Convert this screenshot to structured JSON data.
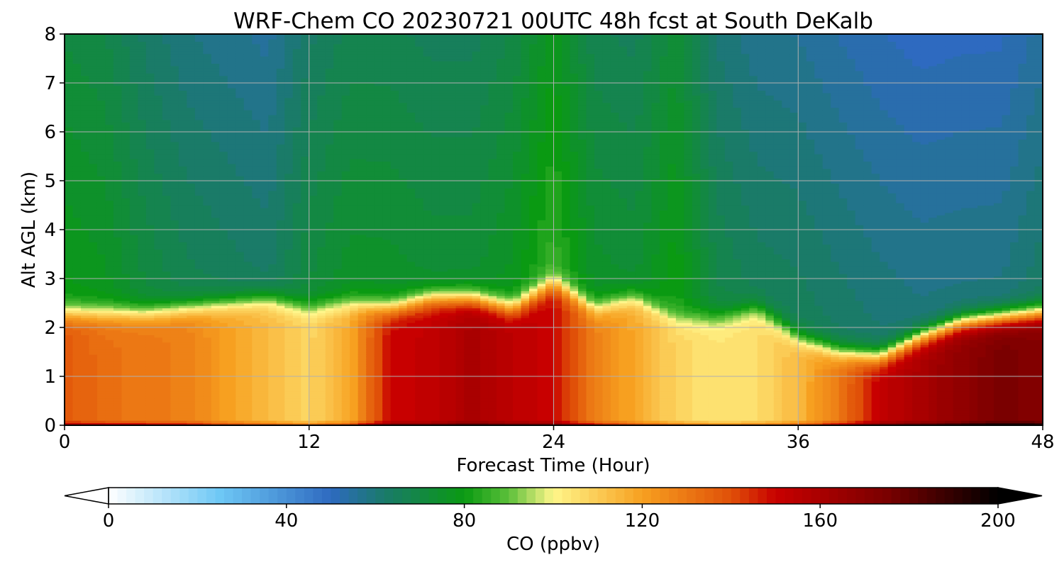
{
  "chart_data": {
    "type": "heatmap",
    "title": "WRF-Chem CO  20230721 00UTC 48h fcst at South DeKalb",
    "xlabel": "Forecast Time (Hour)",
    "ylabel": "Alt AGL (km)",
    "xlim": [
      0,
      48
    ],
    "ylim": [
      0,
      8
    ],
    "x_ticks": [
      0,
      12,
      24,
      36,
      48
    ],
    "y_ticks": [
      0,
      1,
      2,
      3,
      4,
      5,
      6,
      7,
      8
    ],
    "x_tick_labels": [
      "0",
      "12",
      "24",
      "36",
      "48"
    ],
    "y_tick_labels": [
      "0",
      "1",
      "2",
      "3",
      "4",
      "5",
      "6",
      "7",
      "8"
    ],
    "grid": true,
    "colorbar": {
      "label": "CO  (ppbv)",
      "orientation": "horizontal",
      "placement": "bottom",
      "range": [
        0,
        200
      ],
      "extend": "both",
      "ticks": [
        0,
        40,
        80,
        120,
        160,
        200
      ],
      "tick_labels": [
        "0",
        "40",
        "80",
        "120",
        "160",
        "200"
      ],
      "color_stops": [
        {
          "value": 0,
          "color": "#ffffff"
        },
        {
          "value": 25,
          "color": "#6ec8f5"
        },
        {
          "value": 50,
          "color": "#2e6ac0"
        },
        {
          "value": 62,
          "color": "#1a7a6a"
        },
        {
          "value": 80,
          "color": "#0a9a12"
        },
        {
          "value": 90,
          "color": "#5cc03a"
        },
        {
          "value": 100,
          "color": "#fff68a"
        },
        {
          "value": 120,
          "color": "#f7a020"
        },
        {
          "value": 140,
          "color": "#e05008"
        },
        {
          "value": 150,
          "color": "#c80000"
        },
        {
          "value": 175,
          "color": "#7a0000"
        },
        {
          "value": 200,
          "color": "#000000"
        }
      ]
    },
    "field_description": {
      "x_hours": [
        0,
        2,
        4,
        6,
        8,
        10,
        12,
        14,
        16,
        18,
        20,
        22,
        24,
        26,
        28,
        30,
        32,
        34,
        36,
        38,
        40,
        42,
        44,
        46,
        48
      ],
      "boundary_layer_top_km": [
        2.3,
        2.3,
        2.3,
        2.4,
        2.5,
        2.6,
        2.4,
        2.5,
        2.4,
        2.6,
        2.6,
        2.4,
        2.9,
        2.4,
        2.6,
        2.2,
        2.2,
        2.4,
        1.8,
        1.5,
        1.4,
        1.8,
        2.1,
        2.2,
        2.3
      ],
      "boundary_layer_co_ppbv": [
        138,
        132,
        130,
        128,
        120,
        114,
        108,
        118,
        150,
        152,
        160,
        154,
        150,
        128,
        118,
        108,
        104,
        106,
        114,
        130,
        152,
        160,
        168,
        175,
        172
      ],
      "free_troposphere_co_ppbv": [
        80,
        78,
        72,
        68,
        66,
        64,
        72,
        76,
        76,
        74,
        74,
        78,
        86,
        76,
        74,
        82,
        70,
        66,
        66,
        64,
        62,
        60,
        60,
        60,
        64
      ]
    }
  }
}
